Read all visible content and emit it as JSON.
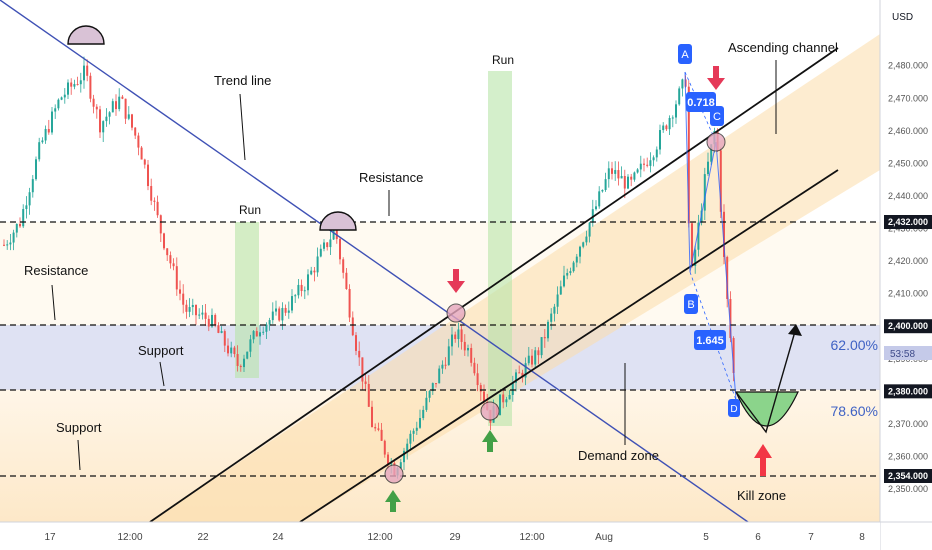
{
  "chart_data": {
    "type": "candlestick",
    "instrument_currency": "USD",
    "x_tick_labels": [
      "17",
      "12:00",
      "22",
      "24",
      "12:00",
      "29",
      "12:00",
      "Aug",
      "5",
      "6",
      "7",
      "8"
    ],
    "y_ticks": [
      2350,
      2360,
      2370,
      2380,
      2390,
      2400,
      2410,
      2420,
      2430,
      2440,
      2450,
      2460,
      2470,
      2480
    ],
    "y_range": [
      2345,
      2495
    ],
    "highlighted_prices": [
      {
        "value": 2432,
        "label": "2,432.000"
      },
      {
        "value": 2400,
        "label": "2,400.000"
      },
      {
        "value": 2380,
        "label": "2,380.000"
      },
      {
        "value": 2354,
        "label": "2,354.000"
      }
    ],
    "countdown_label": "53:58",
    "fib_levels": [
      {
        "label": "62.00%",
        "value": 2392
      },
      {
        "label": "78.60%",
        "value": 2374
      }
    ],
    "annotations": {
      "trend_line": "Trend line",
      "ascending_channel": "Ascending channel",
      "resistance_top": "Resistance",
      "resistance_left": "Resistance",
      "support_mid": "Support",
      "support_low": "Support",
      "run_1": "Run",
      "run_2": "Run",
      "demand_zone": "Demand zone",
      "kill_zone": "Kill zone"
    },
    "harmonic_points": [
      {
        "label": "A",
        "value": 2480
      },
      {
        "label": "B",
        "value": 2406
      },
      {
        "label": "C",
        "value": 2468
      },
      {
        "label": "D",
        "value": 2375
      }
    ],
    "harmonic_ratios": [
      "0.718",
      "1.645"
    ],
    "colors": {
      "up_candle": "#26a69a",
      "down_candle": "#ef5350",
      "trend_line": "#3f51b5",
      "channel_fill": "#fcdcaa",
      "zone_band": "#c5cae9",
      "run_box": "#b7e4a8",
      "harmonic_label_bg": "#2962ff",
      "kill_zone_fill": "#8bd48b",
      "arrow_down": "#e53958",
      "arrow_up_green": "#43a047",
      "arrow_up_red": "#f23645"
    }
  }
}
